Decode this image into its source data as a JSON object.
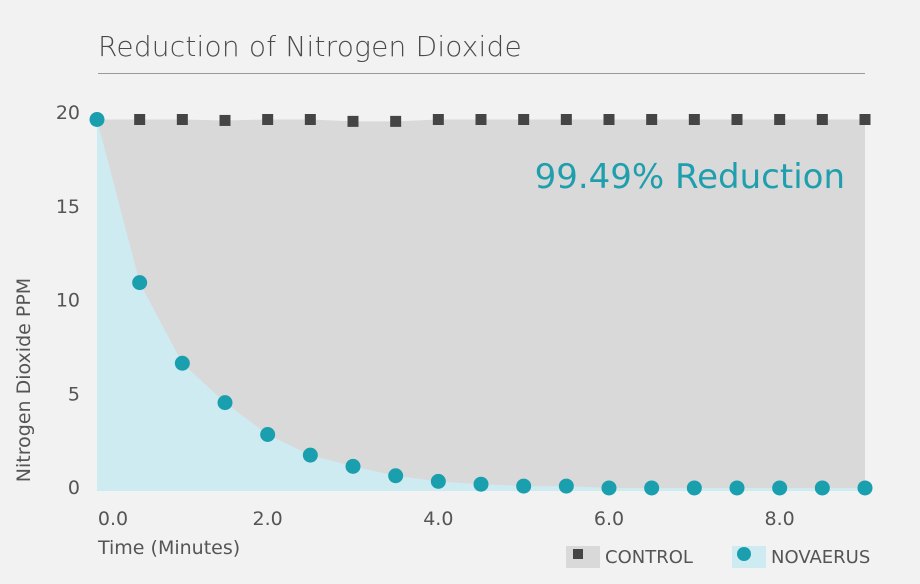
{
  "chart_data": {
    "type": "area",
    "title": "Reduction of Nitrogen Dioxide",
    "ylabel": "Nitrogen Dioxide PPM",
    "xlabel": "Time (Minutes)",
    "annotation": "99.49% Reduction",
    "xlim": [
      0,
      9.0
    ],
    "ylim": [
      0,
      20
    ],
    "x_ticks": [
      0,
      2,
      4,
      6,
      8
    ],
    "x_tick_labels": [
      "0.0",
      "2.0",
      "4.0",
      "6.0",
      "8.0"
    ],
    "y_ticks": [
      0,
      5,
      10,
      15,
      20
    ],
    "y_tick_labels": [
      "0",
      "5",
      "10",
      "15",
      "20"
    ],
    "x": [
      0.0,
      0.5,
      1.0,
      1.5,
      2.0,
      2.5,
      3.0,
      3.5,
      4.0,
      4.5,
      5.0,
      5.5,
      6.0,
      6.5,
      7.0,
      7.5,
      8.0,
      8.5,
      9.0
    ],
    "series": [
      {
        "name": "CONTROL",
        "color": "#454545",
        "fill": "#d9d9d9",
        "marker": "square",
        "values": [
          19.6,
          19.6,
          19.6,
          19.55,
          19.6,
          19.6,
          19.5,
          19.5,
          19.6,
          19.6,
          19.6,
          19.6,
          19.6,
          19.6,
          19.6,
          19.6,
          19.6,
          19.6,
          19.6
        ]
      },
      {
        "name": "NOVAERUS",
        "color": "#1a9fae",
        "fill": "#cdebf0",
        "marker": "circle",
        "values": [
          19.6,
          10.9,
          6.6,
          4.5,
          2.8,
          1.7,
          1.1,
          0.6,
          0.3,
          0.15,
          0.05,
          0.05,
          -0.05,
          -0.05,
          -0.05,
          -0.05,
          -0.05,
          -0.05,
          -0.05
        ]
      }
    ],
    "legend": [
      "CONTROL",
      "NOVAERUS"
    ],
    "legend_position": "bottom-right",
    "grid": false
  }
}
